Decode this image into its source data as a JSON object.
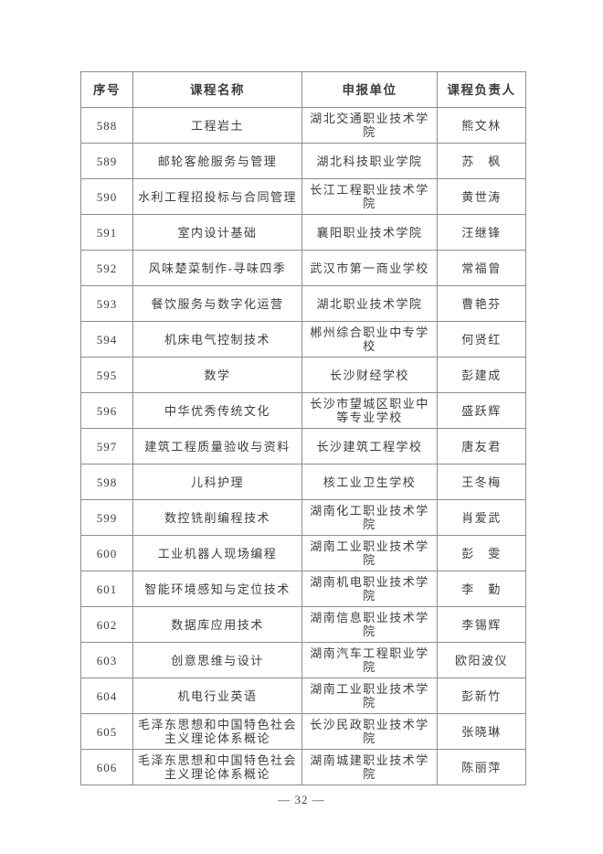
{
  "colors": {
    "page_background": "#ffffff",
    "text": "#3d3d3d",
    "table_border": "#8c8c8c"
  },
  "table": {
    "columns": [
      "序号",
      "课程名称",
      "申报单位",
      "课程负责人"
    ],
    "rows": [
      {
        "no": "588",
        "course": "工程岩土",
        "unit": "湖北交通职业技术学院",
        "person": "熊文林"
      },
      {
        "no": "589",
        "course": "邮轮客舱服务与管理",
        "unit": "湖北科技职业学院",
        "person": "苏　枫"
      },
      {
        "no": "590",
        "course": "水利工程招投标与合同管理",
        "unit": "长江工程职业技术学院",
        "person": "黄世涛"
      },
      {
        "no": "591",
        "course": "室内设计基础",
        "unit": "襄阳职业技术学院",
        "person": "汪继锋"
      },
      {
        "no": "592",
        "course": "风味楚菜制作-寻味四季",
        "unit": "武汉市第一商业学校",
        "person": "常福曾"
      },
      {
        "no": "593",
        "course": "餐饮服务与数字化运营",
        "unit": "湖北职业技术学院",
        "person": "曹艳芬"
      },
      {
        "no": "594",
        "course": "机床电气控制技术",
        "unit": "郴州综合职业中专学校",
        "person": "何贤红"
      },
      {
        "no": "595",
        "course": "数学",
        "unit": "长沙财经学校",
        "person": "彭建成"
      },
      {
        "no": "596",
        "course": "中华优秀传统文化",
        "unit": "长沙市望城区职业中等专业学校",
        "person": "盛跃辉"
      },
      {
        "no": "597",
        "course": "建筑工程质量验收与资料",
        "unit": "长沙建筑工程学校",
        "person": "唐友君"
      },
      {
        "no": "598",
        "course": "儿科护理",
        "unit": "核工业卫生学校",
        "person": "王冬梅"
      },
      {
        "no": "599",
        "course": "数控铣削编程技术",
        "unit": "湖南化工职业技术学院",
        "person": "肖爱武"
      },
      {
        "no": "600",
        "course": "工业机器人现场编程",
        "unit": "湖南工业职业技术学院",
        "person": "彭　雯"
      },
      {
        "no": "601",
        "course": "智能环境感知与定位技术",
        "unit": "湖南机电职业技术学院",
        "person": "李　勤"
      },
      {
        "no": "602",
        "course": "数据库应用技术",
        "unit": "湖南信息职业技术学院",
        "person": "李锡辉"
      },
      {
        "no": "603",
        "course": "创意思维与设计",
        "unit": "湖南汽车工程职业学院",
        "person": "欧阳波仪"
      },
      {
        "no": "604",
        "course": "机电行业英语",
        "unit": "湖南工业职业技术学院",
        "person": "彭新竹"
      },
      {
        "no": "605",
        "course": "毛泽东思想和中国特色社会主义理论体系概论",
        "unit": "长沙民政职业技术学院",
        "person": "张晓琳"
      },
      {
        "no": "606",
        "course": "毛泽东思想和中国特色社会主义理论体系概论",
        "unit": "湖南城建职业技术学院",
        "person": "陈丽萍"
      }
    ]
  },
  "footer": {
    "page_label": "— 32 —"
  }
}
